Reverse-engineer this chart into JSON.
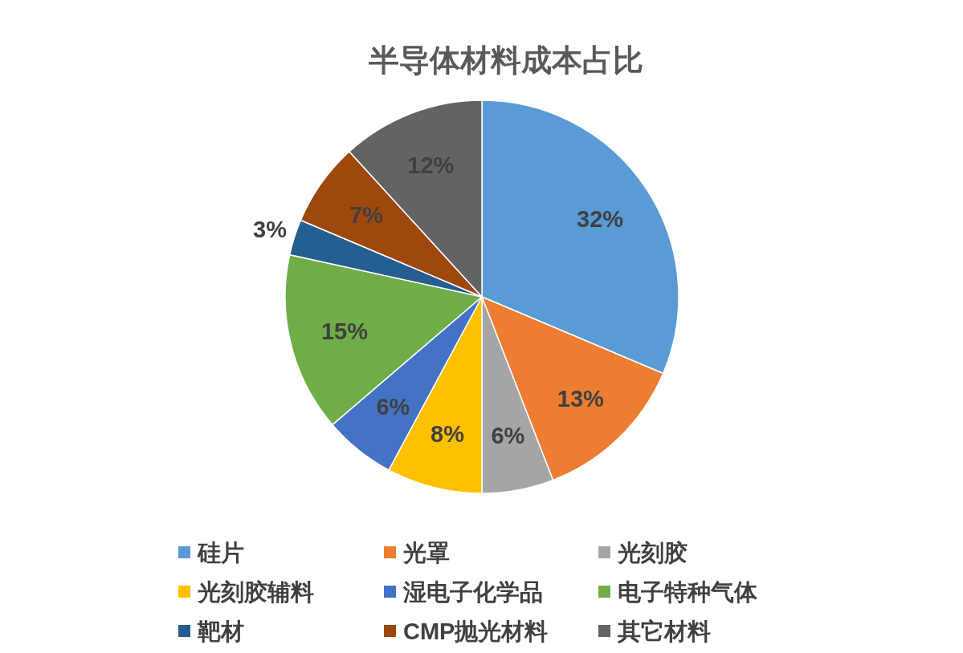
{
  "chart_data": {
    "type": "pie",
    "title": "半导体材料成本占比",
    "categories": [
      "硅片",
      "光罩",
      "光刻胶",
      "光刻胶辅料",
      "湿电子化学品",
      "电子特种气体",
      "靶材",
      "CMP抛光材料",
      "其它材料"
    ],
    "values": [
      32,
      13,
      6,
      8,
      6,
      15,
      3,
      7,
      12
    ],
    "value_labels": [
      "32%",
      "13%",
      "6%",
      "8%",
      "6%",
      "15%",
      "3%",
      "7%",
      "12%"
    ],
    "colors": [
      "#5b9bd5",
      "#ed7d31",
      "#a5a5a5",
      "#ffc000",
      "#4472c4",
      "#70ad47",
      "#255e91",
      "#9e480e",
      "#636363"
    ],
    "legend": "bottom"
  }
}
